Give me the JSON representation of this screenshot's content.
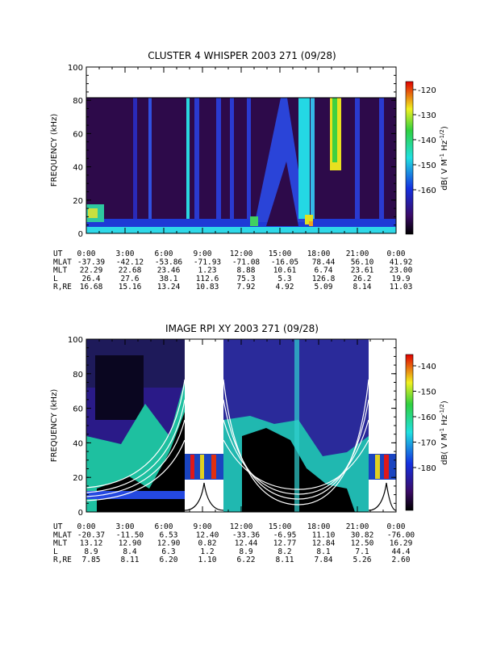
{
  "chart_data": [
    {
      "type": "heatmap",
      "title": "CLUSTER 4 WHISPER 2003 271 (09/28)",
      "ylabel": "FREQUENCY (kHz)",
      "ylim": [
        0,
        100
      ],
      "yticks": [
        "0",
        "20",
        "40",
        "60",
        "80",
        "100"
      ],
      "data_ceiling_khz": 80,
      "colorbar": {
        "label": "dB( V M^-1 Hz^-1/2 )",
        "ticks": [
          "-120",
          "-130",
          "-140",
          "-150",
          "-160"
        ],
        "range": [
          -166,
          -117
        ]
      },
      "ephemeris": {
        "row_labels": [
          "UT",
          "MLAT",
          "MLT",
          "L",
          "R,RE"
        ],
        "columns": [
          [
            "0:00",
            "-37.39",
            "22.29",
            "26.4",
            "16.68"
          ],
          [
            "3:00",
            "-42.12",
            "22.68",
            "27.6",
            "15.16"
          ],
          [
            "6:00",
            "-53.86",
            "23.46",
            "38.1",
            "13.24"
          ],
          [
            "9:00",
            "-71.93",
            "1.23",
            "112.6",
            "10.83"
          ],
          [
            "12:00",
            "-71.08",
            "8.88",
            "75.3",
            "7.92"
          ],
          [
            "15:00",
            "-16.05",
            "10.61",
            "5.3",
            "4.92"
          ],
          [
            "18:00",
            "78.44",
            "6.74",
            "126.8",
            "5.09"
          ],
          [
            "21:00",
            "56.10",
            "23.61",
            "26.2",
            "8.14"
          ],
          [
            "0:00",
            "41.92",
            "23.00",
            "19.9",
            "11.03"
          ]
        ]
      }
    },
    {
      "type": "heatmap",
      "title": "IMAGE RPI XY 2003 271 (09/28)",
      "ylabel": "FREQUENCY (kHz)",
      "ylim": [
        0,
        100
      ],
      "yticks": [
        "0",
        "20",
        "40",
        "60",
        "80",
        "100"
      ],
      "colorbar": {
        "label": "dB( V M^-1 Hz^-1/2 )",
        "ticks": [
          "-140",
          "-150",
          "-160",
          "-170",
          "-180"
        ],
        "range": [
          -186,
          -135
        ]
      },
      "ephemeris": {
        "row_labels": [
          "UT",
          "MLAT",
          "MLT",
          "L",
          "R,RE"
        ],
        "columns": [
          [
            "0:00",
            "-20.37",
            "13.12",
            "8.9",
            "7.85"
          ],
          [
            "3:00",
            "-11.50",
            "12.90",
            "8.4",
            "8.11"
          ],
          [
            "6:00",
            "6.53",
            "12.90",
            "6.3",
            "6.20"
          ],
          [
            "9:00",
            "12.40",
            "0.82",
            "1.2",
            "1.10"
          ],
          [
            "12:00",
            "-33.36",
            "12.44",
            "8.9",
            "6.22"
          ],
          [
            "15:00",
            "-6.95",
            "12.77",
            "8.2",
            "8.11"
          ],
          [
            "18:00",
            "11.10",
            "12.84",
            "8.1",
            "7.84"
          ],
          [
            "21:00",
            "30.82",
            "12.50",
            "7.1",
            "5.26"
          ],
          [
            "0:00",
            "-76.00",
            "16.29",
            "44.4",
            "2.60"
          ]
        ]
      }
    }
  ],
  "colors": {
    "background": "#2d0a4a",
    "blue": "#1e3ad6",
    "cyan": "#2ee6e6",
    "green": "#44dd44",
    "yellow": "#f0f020",
    "red": "#e01010",
    "black": "#000000"
  }
}
